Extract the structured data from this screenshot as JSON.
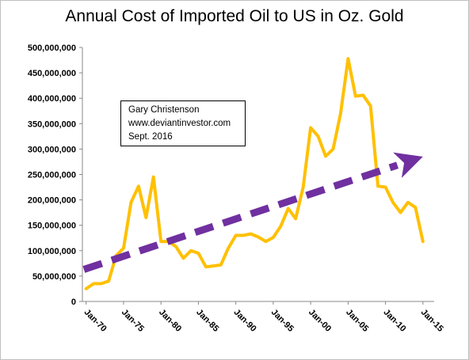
{
  "chart_data": {
    "type": "line",
    "title": "Annual Cost of Imported Oil to US in Oz. Gold",
    "xlabel": "",
    "ylabel": "",
    "x_tick_labels": [
      "Jan-70",
      "Jan-75",
      "Jan-80",
      "Jan-85",
      "Jan-90",
      "Jan-95",
      "Jan-00",
      "Jan-05",
      "Jan-10",
      "Jan-15"
    ],
    "x_tick_years": [
      1970,
      1975,
      1980,
      1985,
      1990,
      1995,
      2000,
      2005,
      2010,
      2015
    ],
    "y_tick_labels": [
      "0",
      "50,000,000",
      "100,000,000",
      "150,000,000",
      "200,000,000",
      "250,000,000",
      "300,000,000",
      "350,000,000",
      "400,000,000",
      "450,000,000",
      "500,000,000"
    ],
    "xlim": [
      1969.5,
      2016.5
    ],
    "ylim": [
      0,
      500000000
    ],
    "grid": false,
    "series": [
      {
        "color": "#FFC000",
        "x": [
          1970,
          1971,
          1972,
          1973,
          1974,
          1975,
          1976,
          1977,
          1978,
          1979,
          1980,
          1981,
          1982,
          1983,
          1984,
          1985,
          1986,
          1987,
          1988,
          1989,
          1990,
          1991,
          1992,
          1993,
          1994,
          1995,
          1996,
          1997,
          1998,
          1999,
          2000,
          2001,
          2002,
          2003,
          2004,
          2005,
          2006,
          2007,
          2008,
          2009,
          2010,
          2011,
          2012,
          2013,
          2014,
          2015
        ],
        "values": [
          25000000,
          35000000,
          35000000,
          40000000,
          90000000,
          105000000,
          195000000,
          227000000,
          165000000,
          245000000,
          118000000,
          118000000,
          108000000,
          85000000,
          100000000,
          95000000,
          68000000,
          70000000,
          72000000,
          105000000,
          130000000,
          130000000,
          133000000,
          127000000,
          118000000,
          126000000,
          148000000,
          183000000,
          163000000,
          225000000,
          342000000,
          325000000,
          286000000,
          300000000,
          370000000,
          478000000,
          404000000,
          406000000,
          385000000,
          227000000,
          225000000,
          195000000,
          175000000,
          195000000,
          185000000,
          118000000
        ]
      }
    ],
    "trend_arrow": {
      "color": "#7030A0",
      "style": "dashed",
      "from": {
        "x": 1969.7,
        "y": 63000000
      },
      "to": {
        "x": 2015.0,
        "y": 285000000
      }
    }
  },
  "annotation": {
    "lines": [
      "Gary Christenson",
      "www.deviantinvestor.com",
      "Sept. 2016"
    ]
  }
}
